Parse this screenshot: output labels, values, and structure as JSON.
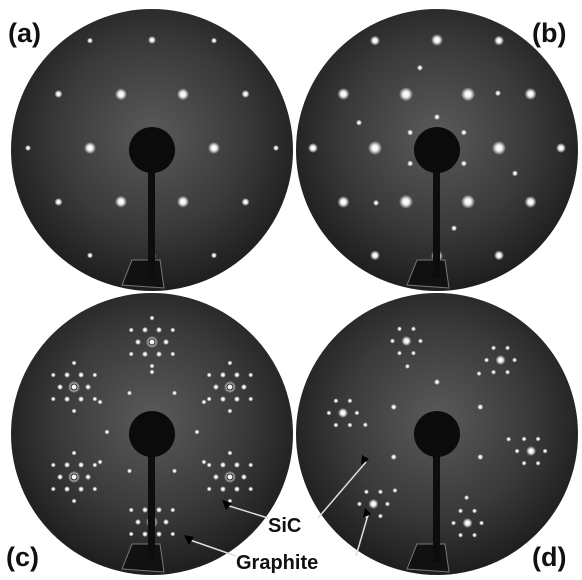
{
  "panels": [
    {
      "label": "(a)"
    },
    {
      "label": "(b)"
    },
    {
      "label": "(c)"
    },
    {
      "label": "(d)"
    }
  ],
  "annotations": [
    {
      "label": "SiC"
    },
    {
      "label": "Graphite"
    }
  ]
}
